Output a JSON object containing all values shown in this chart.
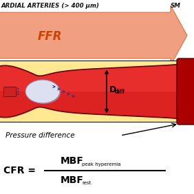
{
  "bg_color": "#ffffff",
  "title_text": "ARDIAL ARTERIES (> 400 μm)",
  "title_sm": "SM",
  "ffr_text": "FFR",
  "arrow_color": "#f0a080",
  "arrow_edge": "#e07040",
  "vessel_red": "#dd2222",
  "vessel_dark_red": "#aa0000",
  "vessel_bright": "#ff4444",
  "vessel_yellow": "#ffe890",
  "plaque_white": "#dde0f0",
  "text_color": "#111111",
  "pressure_text": "Pressure difference",
  "cfr_text": "CFR = ",
  "mbf_num": "MBF",
  "mbf_num_sub": "peak hyperemia",
  "mbf_den": "MBF",
  "mbf_den_sub": "rest"
}
